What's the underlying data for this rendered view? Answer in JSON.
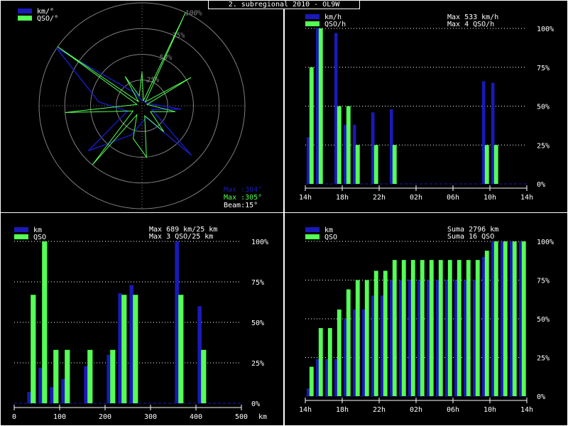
{
  "page_title": "2. subregional 2010 - OL9W",
  "colors": {
    "blue": "#1a1ab8",
    "green": "#55ff55",
    "white": "#ffffff",
    "grid": "#808080"
  },
  "chart_data": [
    {
      "type": "polar",
      "legend": [
        "km/°",
        "QSO/°"
      ],
      "ring_labels": [
        "25%",
        "50%",
        "75%",
        "100%"
      ],
      "info": {
        "max_km": "Max :304°",
        "max_qso": "Max :305°",
        "beam": "Beam:15°"
      },
      "km_series": [
        {
          "az": 0,
          "v": 0.05
        },
        {
          "az": 30,
          "v": 0.05
        },
        {
          "az": 60,
          "v": 0.05
        },
        {
          "az": 95,
          "v": 0.38
        },
        {
          "az": 110,
          "v": 0.1
        },
        {
          "az": 135,
          "v": 0.68
        },
        {
          "az": 160,
          "v": 0.12
        },
        {
          "az": 200,
          "v": 0.3
        },
        {
          "az": 230,
          "v": 0.68
        },
        {
          "az": 250,
          "v": 0.15
        },
        {
          "az": 275,
          "v": 0.42
        },
        {
          "az": 304,
          "v": 1.0
        },
        {
          "az": 330,
          "v": 0.15
        }
      ],
      "qso_series": [
        {
          "az": 0,
          "v": 0.33
        },
        {
          "az": 15,
          "v": 0.05
        },
        {
          "az": 25,
          "v": 1.0
        },
        {
          "az": 40,
          "v": 0.05
        },
        {
          "az": 60,
          "v": 0.55
        },
        {
          "az": 75,
          "v": 0.05
        },
        {
          "az": 100,
          "v": 0.33
        },
        {
          "az": 125,
          "v": 0.1
        },
        {
          "az": 140,
          "v": 0.33
        },
        {
          "az": 165,
          "v": 0.1
        },
        {
          "az": 175,
          "v": 0.5
        },
        {
          "az": 195,
          "v": 0.33
        },
        {
          "az": 210,
          "v": 0.1
        },
        {
          "az": 220,
          "v": 0.75
        },
        {
          "az": 240,
          "v": 0.1
        },
        {
          "az": 265,
          "v": 0.75
        },
        {
          "az": 285,
          "v": 0.05
        },
        {
          "az": 305,
          "v": 1.0
        },
        {
          "az": 320,
          "v": 0.05
        },
        {
          "az": 330,
          "v": 0.33
        },
        {
          "az": 345,
          "v": 0.1
        }
      ]
    },
    {
      "type": "bar",
      "legend": [
        "km/h",
        "QSO/h"
      ],
      "info_lines": [
        "Max   533 km/h",
        "Max     4 QSO/h"
      ],
      "y_ticks": [
        "25%",
        "50%",
        "75%",
        "100%",
        "0%"
      ],
      "x_ticks": [
        "14h",
        "18h",
        "22h",
        "02h",
        "06h",
        "10h",
        "14h"
      ],
      "x_range": [
        0,
        24
      ],
      "x_tick_values": [
        0,
        4,
        8,
        12,
        16,
        20,
        24
      ],
      "km_values": [
        0.3,
        1.0,
        0,
        0.97,
        0.38,
        0.38,
        0,
        0.46,
        0,
        0.48,
        0,
        0,
        0,
        0,
        0,
        0,
        0,
        0,
        0,
        0.66,
        0.65,
        0,
        0,
        0
      ],
      "qso_values": [
        0.75,
        1.0,
        0,
        0.5,
        0.5,
        0.25,
        0,
        0.25,
        0,
        0.25,
        0,
        0,
        0,
        0,
        0,
        0,
        0,
        0,
        0,
        0.25,
        0.25,
        0,
        0,
        0
      ]
    },
    {
      "type": "bar",
      "legend": [
        "km",
        "QSO"
      ],
      "info_lines": [
        "Max   689 km/25 km",
        "Max     3 QSO/25 km"
      ],
      "y_ticks": [
        "25%",
        "50%",
        "75%",
        "100%",
        "0%"
      ],
      "x_ticks": [
        "0",
        "100",
        "200",
        "300",
        "400",
        "500"
      ],
      "x_tick_values": [
        0,
        100,
        200,
        300,
        400,
        500
      ],
      "x_unit": "km",
      "x_range": [
        0,
        500
      ],
      "bin_width": 25,
      "km_values": [
        0,
        0.07,
        0.22,
        0.1,
        0.15,
        0,
        0.23,
        0,
        0.3,
        0.68,
        0.73,
        0,
        0,
        0,
        1.0,
        0,
        0.6,
        0,
        0,
        0
      ],
      "qso_values": [
        0,
        0.67,
        1.0,
        0.33,
        0.33,
        0,
        0.33,
        0,
        0.33,
        0.67,
        0.67,
        0,
        0,
        0,
        0.67,
        0,
        0.33,
        0,
        0,
        0
      ]
    },
    {
      "type": "bar",
      "legend": [
        "km",
        "QSO"
      ],
      "info_lines": [
        "Suma   2796 km",
        "Suma     16 QSO"
      ],
      "y_ticks": [
        "25%",
        "50%",
        "75%",
        "100%",
        "0%"
      ],
      "x_ticks": [
        "14h",
        "18h",
        "22h",
        "02h",
        "06h",
        "10h",
        "14h"
      ],
      "x_range": [
        0,
        24
      ],
      "x_tick_values": [
        0,
        4,
        8,
        12,
        16,
        20,
        24
      ],
      "km_values": [
        0.05,
        0.24,
        0.24,
        0.24,
        0.5,
        0.56,
        0.56,
        0.65,
        0.65,
        0.75,
        0.75,
        0.75,
        0.75,
        0.75,
        0.75,
        0.75,
        0.75,
        0.75,
        0.75,
        0.9,
        1.0,
        1.0,
        1.0,
        1.0
      ],
      "qso_values": [
        0.19,
        0.44,
        0.44,
        0.56,
        0.69,
        0.75,
        0.75,
        0.81,
        0.81,
        0.88,
        0.88,
        0.88,
        0.88,
        0.88,
        0.88,
        0.88,
        0.88,
        0.88,
        0.88,
        0.94,
        1.0,
        1.0,
        1.0,
        1.0
      ]
    }
  ]
}
